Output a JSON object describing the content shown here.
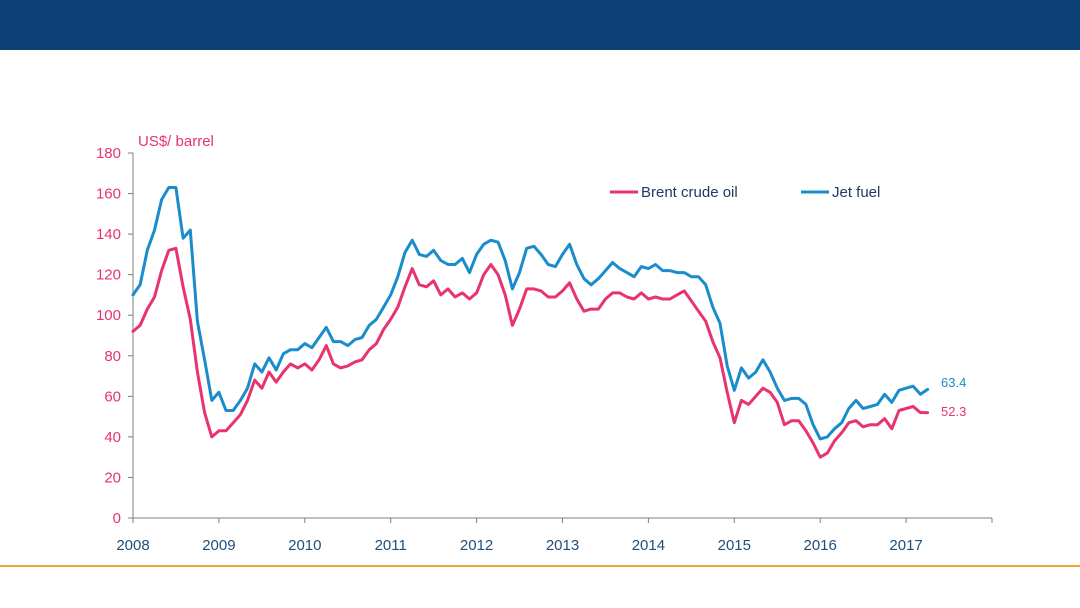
{
  "colors": {
    "banner": "#0d4077",
    "rule": "#e9a53a",
    "brent": "#e8336f",
    "jet": "#1a8ccc",
    "axis": "#7f7f7f"
  },
  "chart_data": {
    "type": "line",
    "unit_label": "US$/ barrel",
    "xlim": [
      2008,
      2018
    ],
    "ylim": [
      0,
      180
    ],
    "y_ticks": [
      0,
      20,
      40,
      60,
      80,
      100,
      120,
      140,
      160,
      180
    ],
    "x_ticks": [
      2008,
      2009,
      2010,
      2011,
      2012,
      2013,
      2014,
      2015,
      2016,
      2017
    ],
    "legend_position": "top-right",
    "grid": false,
    "series": [
      {
        "name": "Brent crude oil",
        "color": "#e8336f",
        "end_label": "52.3",
        "x": [
          2008.0,
          2008.083,
          2008.167,
          2008.25,
          2008.333,
          2008.417,
          2008.5,
          2008.583,
          2008.667,
          2008.75,
          2008.833,
          2008.917,
          2009.0,
          2009.083,
          2009.167,
          2009.25,
          2009.333,
          2009.417,
          2009.5,
          2009.583,
          2009.667,
          2009.75,
          2009.833,
          2009.917,
          2010.0,
          2010.083,
          2010.167,
          2010.25,
          2010.333,
          2010.417,
          2010.5,
          2010.583,
          2010.667,
          2010.75,
          2010.833,
          2010.917,
          2011.0,
          2011.083,
          2011.167,
          2011.25,
          2011.333,
          2011.417,
          2011.5,
          2011.583,
          2011.667,
          2011.75,
          2011.833,
          2011.917,
          2012.0,
          2012.083,
          2012.167,
          2012.25,
          2012.333,
          2012.417,
          2012.5,
          2012.583,
          2012.667,
          2012.75,
          2012.833,
          2012.917,
          2013.0,
          2013.083,
          2013.167,
          2013.25,
          2013.333,
          2013.417,
          2013.5,
          2013.583,
          2013.667,
          2013.75,
          2013.833,
          2013.917,
          2014.0,
          2014.083,
          2014.167,
          2014.25,
          2014.333,
          2014.417,
          2014.5,
          2014.583,
          2014.667,
          2014.75,
          2014.833,
          2014.917,
          2015.0,
          2015.083,
          2015.167,
          2015.25,
          2015.333,
          2015.417,
          2015.5,
          2015.583,
          2015.667,
          2015.75,
          2015.833,
          2015.917,
          2016.0,
          2016.083,
          2016.167,
          2016.25,
          2016.333,
          2016.417,
          2016.5,
          2016.583,
          2016.667,
          2016.75,
          2016.833,
          2016.917,
          2017.0,
          2017.083,
          2017.167,
          2017.25
        ],
        "values": [
          92,
          95,
          103,
          109,
          122,
          132,
          133,
          114,
          98,
          72,
          52,
          40,
          43,
          43,
          47,
          51,
          58,
          68,
          64,
          72,
          67,
          72,
          76,
          74,
          76,
          73,
          78,
          85,
          76,
          74,
          75,
          77,
          78,
          83,
          86,
          93,
          98,
          104,
          114,
          123,
          115,
          114,
          117,
          110,
          113,
          109,
          111,
          108,
          111,
          120,
          125,
          120,
          110,
          95,
          103,
          113,
          113,
          112,
          109,
          109,
          112,
          116,
          108,
          102,
          103,
          103,
          108,
          111,
          111,
          109,
          108,
          111,
          108,
          109,
          108,
          108,
          110,
          112,
          107,
          102,
          97,
          87,
          79,
          62,
          47,
          58,
          56,
          60,
          64,
          62,
          57,
          46,
          48,
          48,
          43,
          37,
          30,
          32,
          38,
          42,
          47,
          48,
          45,
          46,
          46,
          49,
          44,
          53,
          54,
          55,
          52,
          52
        ]
      },
      {
        "name": "Jet fuel",
        "color": "#1a8ccc",
        "end_label": "63.4",
        "x": [
          2008.0,
          2008.083,
          2008.167,
          2008.25,
          2008.333,
          2008.417,
          2008.5,
          2008.583,
          2008.667,
          2008.75,
          2008.833,
          2008.917,
          2009.0,
          2009.083,
          2009.167,
          2009.25,
          2009.333,
          2009.417,
          2009.5,
          2009.583,
          2009.667,
          2009.75,
          2009.833,
          2009.917,
          2010.0,
          2010.083,
          2010.167,
          2010.25,
          2010.333,
          2010.417,
          2010.5,
          2010.583,
          2010.667,
          2010.75,
          2010.833,
          2010.917,
          2011.0,
          2011.083,
          2011.167,
          2011.25,
          2011.333,
          2011.417,
          2011.5,
          2011.583,
          2011.667,
          2011.75,
          2011.833,
          2011.917,
          2012.0,
          2012.083,
          2012.167,
          2012.25,
          2012.333,
          2012.417,
          2012.5,
          2012.583,
          2012.667,
          2012.75,
          2012.833,
          2012.917,
          2013.0,
          2013.083,
          2013.167,
          2013.25,
          2013.333,
          2013.417,
          2013.5,
          2013.583,
          2013.667,
          2013.75,
          2013.833,
          2013.917,
          2014.0,
          2014.083,
          2014.167,
          2014.25,
          2014.333,
          2014.417,
          2014.5,
          2014.583,
          2014.667,
          2014.75,
          2014.833,
          2014.917,
          2015.0,
          2015.083,
          2015.167,
          2015.25,
          2015.333,
          2015.417,
          2015.5,
          2015.583,
          2015.667,
          2015.75,
          2015.833,
          2015.917,
          2016.0,
          2016.083,
          2016.167,
          2016.25,
          2016.333,
          2016.417,
          2016.5,
          2016.583,
          2016.667,
          2016.75,
          2016.833,
          2016.917,
          2017.0,
          2017.083,
          2017.167,
          2017.25
        ],
        "values": [
          110,
          115,
          132,
          142,
          157,
          163,
          163,
          138,
          142,
          97,
          78,
          58,
          62,
          53,
          53,
          58,
          64,
          76,
          72,
          79,
          73,
          81,
          83,
          83,
          86,
          84,
          89,
          94,
          87,
          87,
          85,
          88,
          89,
          95,
          98,
          104,
          110,
          119,
          131,
          137,
          130,
          129,
          132,
          127,
          125,
          125,
          128,
          121,
          130,
          135,
          137,
          136,
          127,
          113,
          121,
          133,
          134,
          130,
          125,
          124,
          130,
          135,
          125,
          118,
          115,
          118,
          122,
          126,
          123,
          121,
          119,
          124,
          123,
          125,
          122,
          122,
          121,
          121,
          119,
          119,
          115,
          104,
          96,
          75,
          63,
          74,
          69,
          72,
          78,
          72,
          64,
          58,
          59,
          59,
          56,
          46,
          39,
          40,
          44,
          47,
          54,
          58,
          54,
          55,
          56,
          61,
          57,
          63,
          64,
          65,
          61,
          63.4
        ]
      }
    ]
  }
}
